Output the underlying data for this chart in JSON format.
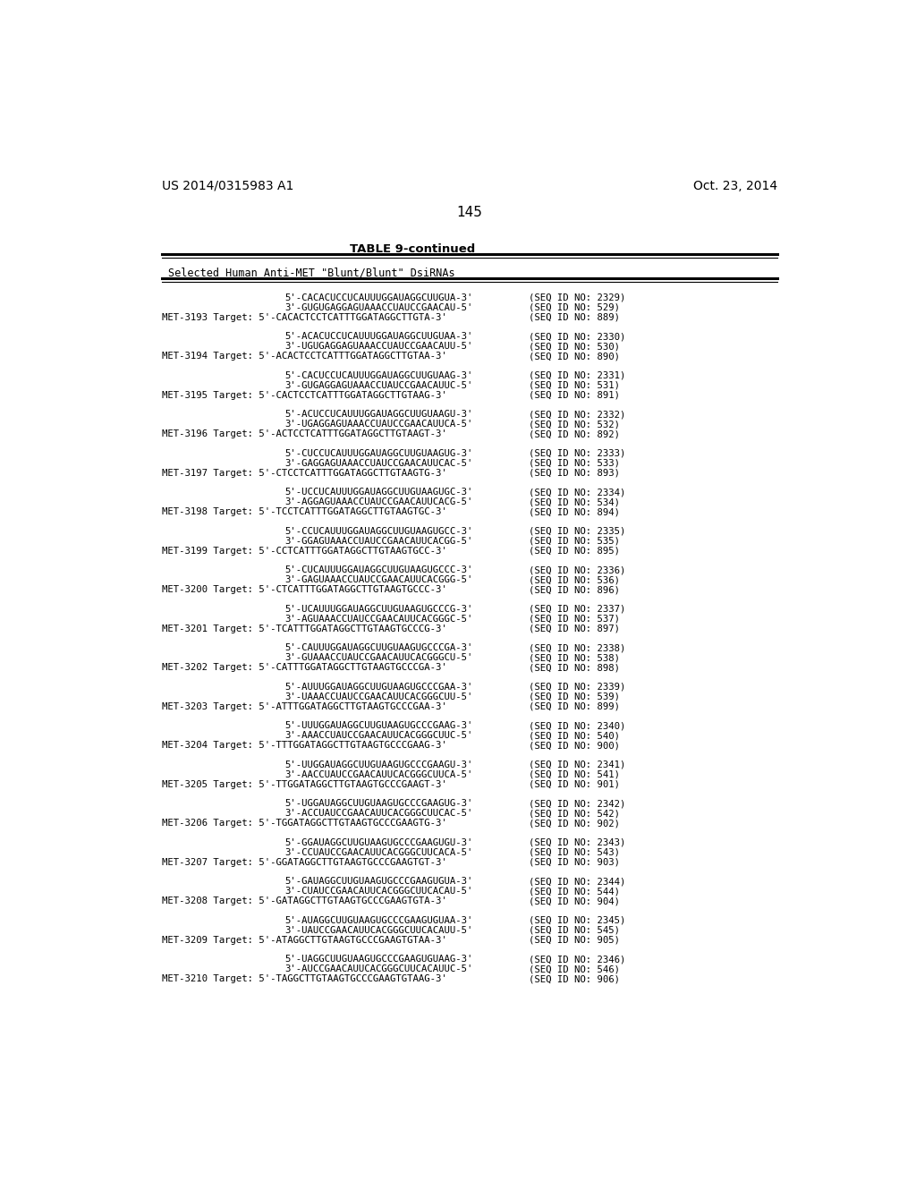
{
  "page_number": "145",
  "left_header": "US 2014/0315983 A1",
  "right_header": "Oct. 23, 2014",
  "table_title": "TABLE 9-continued",
  "table_subtitle": "Selected Human Anti-MET \"Blunt/Blunt\" DsiRNAs",
  "background_color": "#ffffff",
  "entries": [
    {
      "met": "MET-3193",
      "seq1": "5'-CACACUCCUCAUUUGGAUAGGCUUGUA-3'",
      "seq2": "3'-GUGUGAGGAGUAAACCUAUCCGAACAU-5'",
      "target": "5'-CACACTCCTCATTTGGATAGGCTTGTA-3'",
      "id1": "(SEQ ID NO: 2329)",
      "id2": "(SEQ ID NO: 529)",
      "id3": "(SEQ ID NO: 889)"
    },
    {
      "met": "MET-3194",
      "seq1": "5'-ACACUCCUCAUUUGGAUAGGCUUGUAA-3'",
      "seq2": "3'-UGUGAGGAGUAAACCUAUCCGAACAUU-5'",
      "target": "5'-ACACTCCTCATTTGGATAGGCTTGTAA-3'",
      "id1": "(SEQ ID NO: 2330)",
      "id2": "(SEQ ID NO: 530)",
      "id3": "(SEQ ID NO: 890)"
    },
    {
      "met": "MET-3195",
      "seq1": "5'-CACUCCUCAUUUGGAUAGGCUUGUAAG-3'",
      "seq2": "3'-GUGAGGAGUAAACCUAUCCGAACAUUC-5'",
      "target": "5'-CACTCCTCATTTGGATAGGCTTGTAAG-3'",
      "id1": "(SEQ ID NO: 2331)",
      "id2": "(SEQ ID NO: 531)",
      "id3": "(SEQ ID NO: 891)"
    },
    {
      "met": "MET-3196",
      "seq1": "5'-ACUCCUCAUUUGGAUAGGCUUGUAAGU-3'",
      "seq2": "3'-UGAGGAGUAAACCUAUCCGAACAUUCA-5'",
      "target": "5'-ACTCCTCATTTGGATAGGCTTGTAAGT-3'",
      "id1": "(SEQ ID NO: 2332)",
      "id2": "(SEQ ID NO: 532)",
      "id3": "(SEQ ID NO: 892)"
    },
    {
      "met": "MET-3197",
      "seq1": "5'-CUCCUCAUUUGGAUAGGCUUGUAAGUG-3'",
      "seq2": "3'-GAGGAGUAAACCUAUCCGAACAUUCAC-5'",
      "target": "5'-CTCCTCATTTGGATAGGCTTGTAAGTG-3'",
      "id1": "(SEQ ID NO: 2333)",
      "id2": "(SEQ ID NO: 533)",
      "id3": "(SEQ ID NO: 893)"
    },
    {
      "met": "MET-3198",
      "seq1": "5'-UCCUCAUUUGGAUAGGCUUGUAAGUGC-3'",
      "seq2": "3'-AGGAGUAAACCUAUCCGAACAUUCACG-5'",
      "target": "5'-TCCTCATTTGGATAGGCTTGTAAGTGC-3'",
      "id1": "(SEQ ID NO: 2334)",
      "id2": "(SEQ ID NO: 534)",
      "id3": "(SEQ ID NO: 894)"
    },
    {
      "met": "MET-3199",
      "seq1": "5'-CCUCAUUUGGAUAGGCUUGUAAGUGCC-3'",
      "seq2": "3'-GGAGUAAACCUAUCCGAACAUUCACGG-5'",
      "target": "5'-CCTCATTTGGATAGGCTTGTAAGTGCC-3'",
      "id1": "(SEQ ID NO: 2335)",
      "id2": "(SEQ ID NO: 535)",
      "id3": "(SEQ ID NO: 895)"
    },
    {
      "met": "MET-3200",
      "seq1": "5'-CUCAUUUGGAUAGGCUUGUAAGUGCCC-3'",
      "seq2": "3'-GAGUAAACCUAUCCGAACAUUCACGGG-5'",
      "target": "5'-CTCATTTGGATAGGCTTGTAAGTGCCC-3'",
      "id1": "(SEQ ID NO: 2336)",
      "id2": "(SEQ ID NO: 536)",
      "id3": "(SEQ ID NO: 896)"
    },
    {
      "met": "MET-3201",
      "seq1": "5'-UCAUUUGGAUAGGCUUGUAAGUGCCCG-3'",
      "seq2": "3'-AGUAAACCUAUCCGAACAUUCACGGGC-5'",
      "target": "5'-TCATTTGGATAGGCTTGTAAGTGCCCG-3'",
      "id1": "(SEQ ID NO: 2337)",
      "id2": "(SEQ ID NO: 537)",
      "id3": "(SEQ ID NO: 897)"
    },
    {
      "met": "MET-3202",
      "seq1": "5'-CAUUUGGAUAGGCUUGUAAGUGCCCGA-3'",
      "seq2": "3'-GUAAACCUAUCCGAACAUUCACGGGCU-5'",
      "target": "5'-CATTTGGATAGGCTTGTAAGTGCCCGA-3'",
      "id1": "(SEQ ID NO: 2338)",
      "id2": "(SEQ ID NO: 538)",
      "id3": "(SEQ ID NO: 898)"
    },
    {
      "met": "MET-3203",
      "seq1": "5'-AUUUGGAUAGGCUUGUAAGUGCCCGAA-3'",
      "seq2": "3'-UAAACCUAUCCGAACAUUCACGGGCUU-5'",
      "target": "5'-ATTTGGATAGGCTTGTAAGTGCCCGAA-3'",
      "id1": "(SEQ ID NO: 2339)",
      "id2": "(SEQ ID NO: 539)",
      "id3": "(SEQ ID NO: 899)"
    },
    {
      "met": "MET-3204",
      "seq1": "5'-UUUGGAUAGGCUUGUAAGUGCCCGAAG-3'",
      "seq2": "3'-AAACCUAUCCGAACAUUCACGGGCUUC-5'",
      "target": "5'-TTTGGATAGGCTTGTAAGTGCCCGAAG-3'",
      "id1": "(SEQ ID NO: 2340)",
      "id2": "(SEQ ID NO: 540)",
      "id3": "(SEQ ID NO: 900)"
    },
    {
      "met": "MET-3205",
      "seq1": "5'-UUGGAUAGGCUUGUAAGUGCCCGAAGU-3'",
      "seq2": "3'-AACCUAUCCGAACAUUCACGGGCUUCA-5'",
      "target": "5'-TTGGATAGGCTTGTAAGTGCCCGAAGT-3'",
      "id1": "(SEQ ID NO: 2341)",
      "id2": "(SEQ ID NO: 541)",
      "id3": "(SEQ ID NO: 901)"
    },
    {
      "met": "MET-3206",
      "seq1": "5'-UGGAUAGGCUUGUAAGUGCCCGAAGUG-3'",
      "seq2": "3'-ACCUAUCCGAACAUUCACGGGCUUCAC-5'",
      "target": "5'-TGGATAGGCTTGTAAGTGCCCGAAGTG-3'",
      "id1": "(SEQ ID NO: 2342)",
      "id2": "(SEQ ID NO: 542)",
      "id3": "(SEQ ID NO: 902)"
    },
    {
      "met": "MET-3207",
      "seq1": "5'-GGAUAGGCUUGUAAGUGCCCGAAGUGU-3'",
      "seq2": "3'-CCUAUCCGAACAUUCACGGGCUUCACA-5'",
      "target": "5'-GGATAGGCTTGTAAGTGCCCGAAGTGT-3'",
      "id1": "(SEQ ID NO: 2343)",
      "id2": "(SEQ ID NO: 543)",
      "id3": "(SEQ ID NO: 903)"
    },
    {
      "met": "MET-3208",
      "seq1": "5'-GAUAGGCUUGUAAGUGCCCGAAGUGUA-3'",
      "seq2": "3'-CUAUCCGAACAUUCACGGGCUUCACAU-5'",
      "target": "5'-GATAGGCTTGTAAGTGCCCGAAGTGTA-3'",
      "id1": "(SEQ ID NO: 2344)",
      "id2": "(SEQ ID NO: 544)",
      "id3": "(SEQ ID NO: 904)"
    },
    {
      "met": "MET-3209",
      "seq1": "5'-AUAGGCUUGUAAGUGCCCGAAGUGUAA-3'",
      "seq2": "3'-UAUCCGAACAUUCACGGGCUUCACAUU-5'",
      "target": "5'-ATAGGCTTGTAAGTGCCCGAAGTGTAA-3'",
      "id1": "(SEQ ID NO: 2345)",
      "id2": "(SEQ ID NO: 545)",
      "id3": "(SEQ ID NO: 905)"
    },
    {
      "met": "MET-3210",
      "seq1": "5'-UAGGCUUGUAAGUGCCCGAAGUGUAAG-3'",
      "seq2": "3'-AUCCGAACAUUCACGGGCUUCACAUUC-5'",
      "target": "5'-TAGGCTTGTAAGTGCCCGAAGTGTAAG-3'",
      "id1": "(SEQ ID NO: 2346)",
      "id2": "(SEQ ID NO: 546)",
      "id3": "(SEQ ID NO: 906)"
    }
  ]
}
